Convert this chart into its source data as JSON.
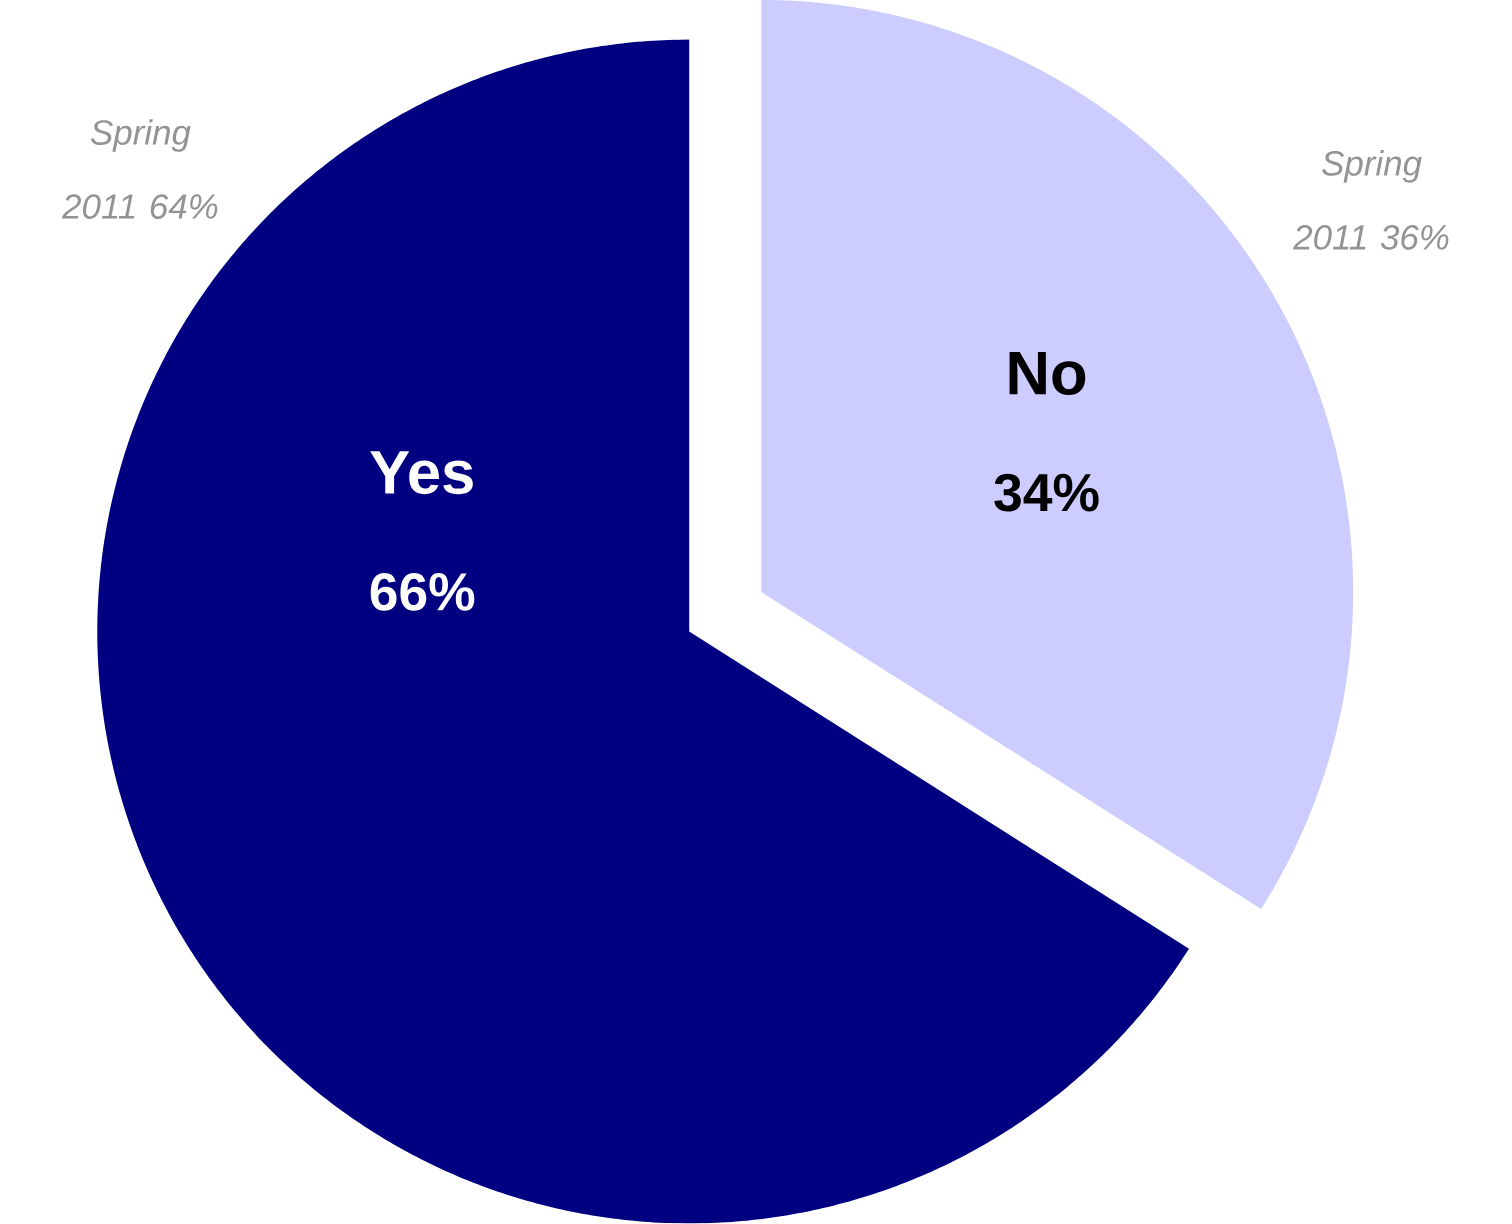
{
  "chart_data": {
    "type": "pie",
    "categories": [
      "Yes",
      "No"
    ],
    "values": [
      66,
      34
    ],
    "value_labels": [
      "66%",
      "34%"
    ],
    "colors": [
      "#000080",
      "#ccccff"
    ],
    "annotations": [
      "Spring 2011 64%",
      "Spring 2011 36%"
    ]
  }
}
